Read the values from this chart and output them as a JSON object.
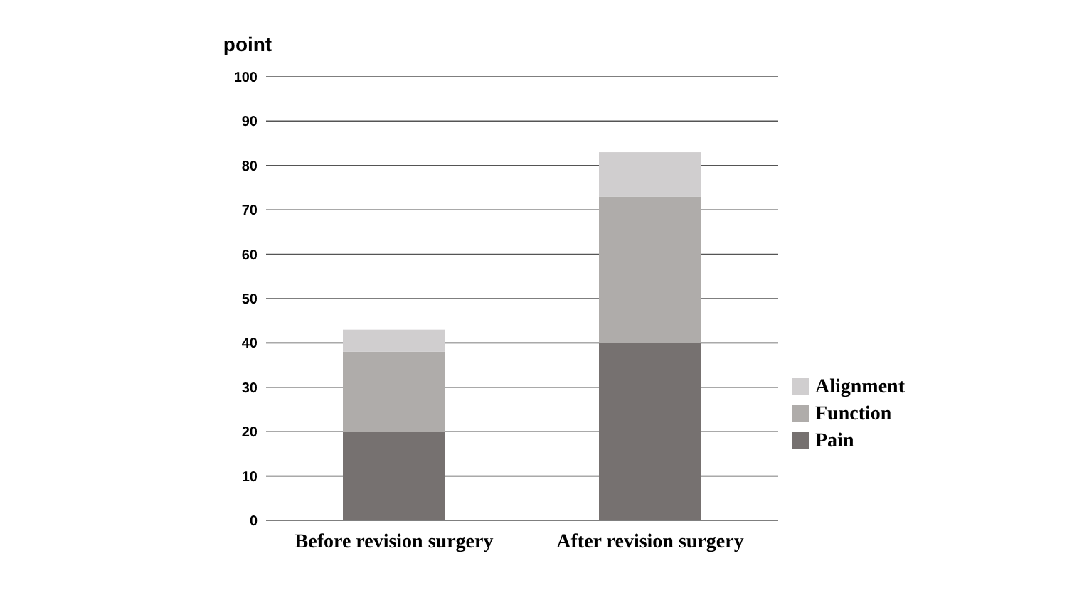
{
  "chart_data": {
    "type": "bar",
    "stacked": true,
    "ylabel": "point",
    "categories": [
      "Before revision surgery",
      "After revision surgery"
    ],
    "series": [
      {
        "name": "Pain",
        "color": "#767170",
        "values": [
          20,
          40
        ]
      },
      {
        "name": "Function",
        "color": "#afacaa",
        "values": [
          18,
          33
        ]
      },
      {
        "name": "Alignment",
        "color": "#d0cecf",
        "values": [
          5,
          10
        ]
      }
    ],
    "ylim": [
      0,
      100
    ],
    "yticks": [
      0,
      10,
      20,
      30,
      40,
      50,
      60,
      70,
      80,
      90,
      100
    ],
    "grid": "y",
    "legend": "right"
  }
}
